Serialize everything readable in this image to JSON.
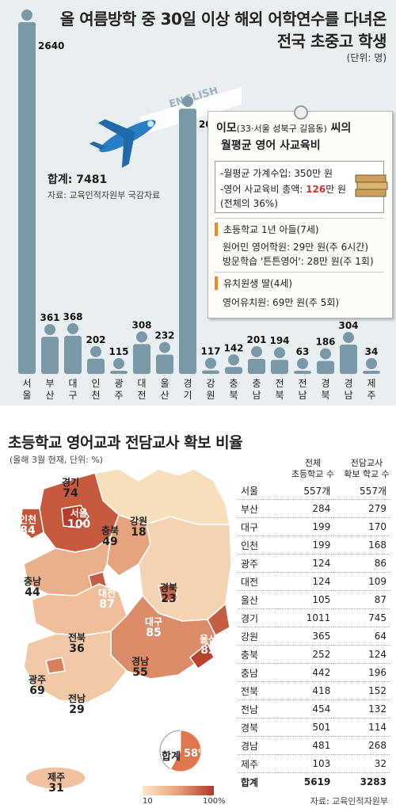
{
  "top_chart": {
    "title_line1": "올 여름방학 중 30일 이상 해외 어학연수를 다녀온",
    "title_line2": "전국 초중고 학생",
    "unit": "(단위: 명)",
    "total_label": "합계: 7481",
    "source": "자료: 교육인적자원부 국감자료",
    "plane_text": "ENGLISH",
    "person_color": "#7a99a8"
  },
  "chart_data": [
    {
      "type": "bar",
      "title": "올 여름방학 중 30일 이상 해외 어학연수를 다녀온 전국 초중고 학생",
      "ylabel": "(단위: 명)",
      "categories": [
        "서울",
        "부산",
        "대구",
        "인천",
        "광주",
        "대전",
        "울산",
        "경기",
        "강원",
        "충북",
        "충남",
        "전북",
        "전남",
        "경북",
        "경남",
        "제주"
      ],
      "values": [
        2640,
        361,
        368,
        202,
        115,
        308,
        232,
        2014,
        117,
        142,
        201,
        194,
        63,
        186,
        304,
        34
      ],
      "total": 7481
    },
    {
      "type": "choropleth",
      "title": "초등학교 영어교과 전담교사 확보 비율",
      "subtitle": "(올해 3월 현재, 단위: %)",
      "regions": [
        "서울",
        "부산",
        "대구",
        "인천",
        "광주",
        "대전",
        "울산",
        "경기",
        "강원",
        "충북",
        "충남",
        "전북",
        "전남",
        "경북",
        "경남",
        "제주"
      ],
      "values": [
        100,
        98,
        85,
        84,
        69,
        87,
        83,
        74,
        18,
        49,
        44,
        36,
        29,
        23,
        55,
        31
      ],
      "legend_range": [
        10,
        100
      ],
      "total_ratio": 58
    },
    {
      "type": "table",
      "columns": [
        "전체 초등학교 수",
        "전담교사 확보 학교 수"
      ],
      "rows": [
        {
          "region": "서울",
          "total": "557개",
          "secured": "557개"
        },
        {
          "region": "부산",
          "total": "284",
          "secured": "279"
        },
        {
          "region": "대구",
          "total": "199",
          "secured": "170"
        },
        {
          "region": "인천",
          "total": "199",
          "secured": "168"
        },
        {
          "region": "광주",
          "total": "124",
          "secured": "86"
        },
        {
          "region": "대전",
          "total": "124",
          "secured": "109"
        },
        {
          "region": "울산",
          "total": "105",
          "secured": "87"
        },
        {
          "region": "경기",
          "total": "1011",
          "secured": "745"
        },
        {
          "region": "강원",
          "total": "365",
          "secured": "64"
        },
        {
          "region": "충북",
          "total": "252",
          "secured": "124"
        },
        {
          "region": "충남",
          "total": "442",
          "secured": "196"
        },
        {
          "region": "전북",
          "total": "418",
          "secured": "152"
        },
        {
          "region": "전남",
          "total": "454",
          "secured": "132"
        },
        {
          "region": "경북",
          "total": "501",
          "secured": "114"
        },
        {
          "region": "경남",
          "total": "481",
          "secured": "268"
        },
        {
          "region": "제주",
          "total": "103",
          "secured": "32"
        }
      ],
      "sum_row": {
        "region": "합계",
        "total": "5619",
        "secured": "3283"
      }
    }
  ],
  "card": {
    "name": "이모",
    "name_detail": "(33·서울 성북구 길음동)",
    "name_suffix": " 씨의",
    "heading2": "월평균 영어 사교육비",
    "income": "-월평균 가계수입: 350만 원",
    "cost_prefix": "-영어 사교육비 총액: ",
    "cost_value": "126",
    "cost_suffix": "만 원",
    "cost_ratio": "(전체의 36%)",
    "sec1": "초등학교 1년 아들(7세)",
    "sec1_l1": "원어민 영어학원: 29만 원(주 6시간)",
    "sec1_l2": "방문학습 '튼튼영어': 28만 원(주 1회)",
    "sec2": "유치원생 딸(4세)",
    "sec2_l1": "영어유치원: 69만 원(주 5회)"
  },
  "map": {
    "title": "초등학교 영어교과 전담교사 확보 비율",
    "subtitle": "(올해 3월 현재, 단위: %)",
    "pie_label": "합계",
    "pie_value": "58%",
    "legend_min": "10",
    "legend_max": "100%",
    "col1": "전체\n초등학교 수",
    "col2": "전담교사\n확보 학교 수",
    "source": "자료: 교육인적자원부"
  }
}
